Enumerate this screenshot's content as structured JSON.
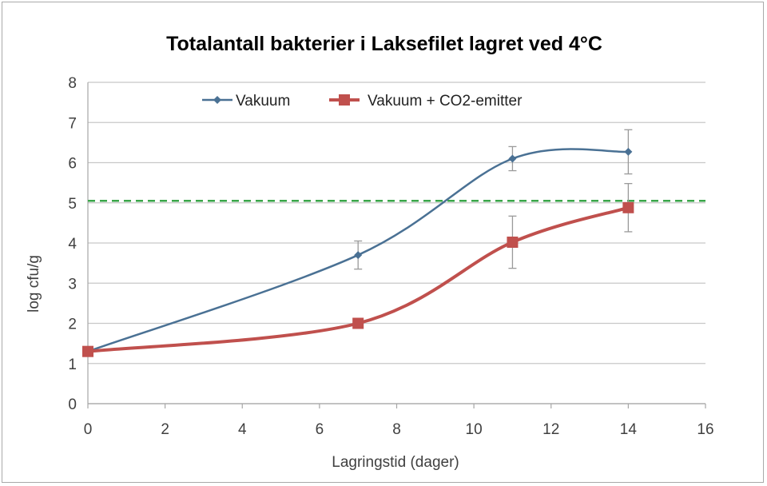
{
  "chart_data": {
    "type": "line",
    "title": "Totalantall bakterier i Laksefilet lagret ved 4°C",
    "xlabel": "Lagringstid (dager)",
    "ylabel": "log cfu/g",
    "xlim": [
      0,
      16
    ],
    "ylim": [
      0,
      8
    ],
    "xticks": [
      0,
      2,
      4,
      6,
      8,
      10,
      12,
      14,
      16
    ],
    "yticks": [
      0,
      1,
      2,
      3,
      4,
      5,
      6,
      7,
      8
    ],
    "grid": "horizontal",
    "legend_position": "top",
    "series": [
      {
        "name": "Vakuum",
        "color": "#4a7194",
        "marker": "diamond",
        "x": [
          0,
          7,
          11,
          14
        ],
        "values": [
          1.3,
          3.7,
          6.1,
          6.27
        ],
        "error": [
          0.05,
          0.35,
          0.3,
          0.55
        ]
      },
      {
        "name": "Vakuum + CO2-emitter",
        "color": "#c0504d",
        "marker": "square",
        "x": [
          0,
          7,
          11,
          14
        ],
        "values": [
          1.3,
          2.0,
          4.02,
          4.88
        ],
        "error": [
          0.05,
          0.05,
          0.65,
          0.6
        ]
      }
    ],
    "reference_line": {
      "y": 5.05,
      "color": "#3aa64a",
      "style": "dashed"
    }
  }
}
